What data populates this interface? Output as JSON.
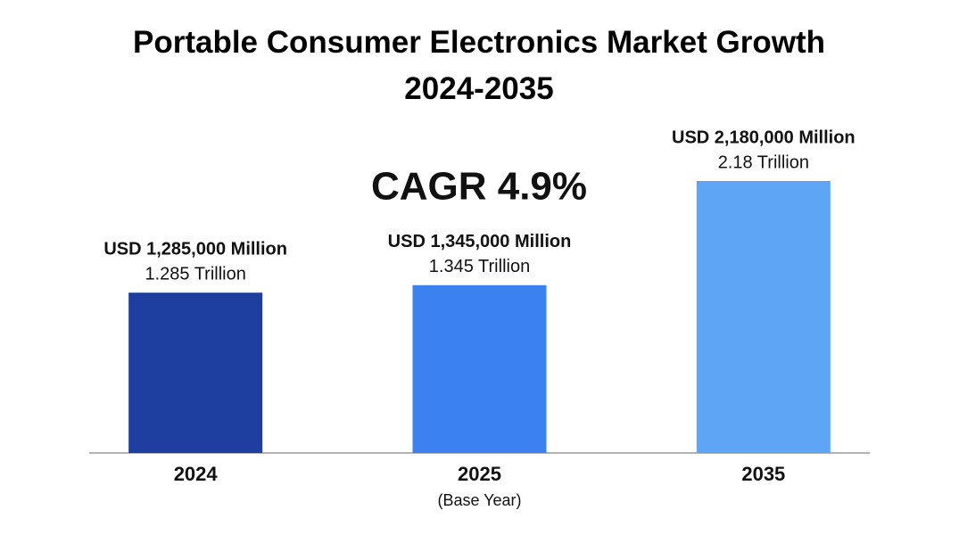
{
  "chart_data": {
    "type": "bar",
    "title": "Portable Consumer Electronics Market Growth 2024-2035",
    "annotation": "CAGR 4.9%",
    "categories": [
      "2024",
      "2025",
      "2035"
    ],
    "category_notes": [
      null,
      "(Base Year)",
      null
    ],
    "values": [
      1285000,
      1345000,
      2180000
    ],
    "value_labels": [
      "USD 1,285,000 Million",
      "USD 1,345,000 Million",
      "USD 2,180,000 Million"
    ],
    "value_labels_trillion": [
      "1.285 Trillion",
      "1.345 Trillion",
      "2.18 Trillion"
    ],
    "colors": [
      "#1e3fa0",
      "#3b82f0",
      "#5ea5f5"
    ]
  }
}
